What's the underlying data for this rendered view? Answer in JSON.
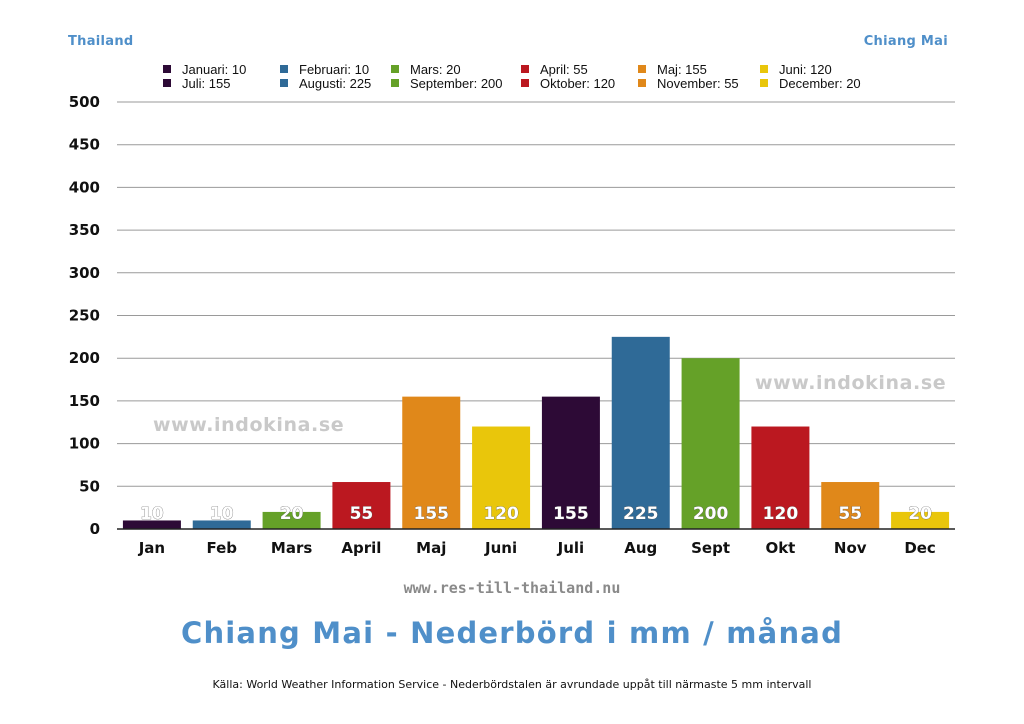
{
  "header": {
    "left_label": "Thailand",
    "right_label": "Chiang Mai"
  },
  "legend": [
    {
      "label": "Januari: 10",
      "color": "#2d0a36"
    },
    {
      "label": "Februari: 10",
      "color": "#2f6a97"
    },
    {
      "label": "Mars: 20",
      "color": "#65a128"
    },
    {
      "label": "April: 55",
      "color": "#bb1820"
    },
    {
      "label": "Maj: 155",
      "color": "#e0881a"
    },
    {
      "label": "Juni: 120",
      "color": "#e9c60b"
    },
    {
      "label": "Juli: 155",
      "color": "#2d0a36"
    },
    {
      "label": "Augusti: 225",
      "color": "#2f6a97"
    },
    {
      "label": "September: 200",
      "color": "#65a128"
    },
    {
      "label": "Oktober: 120",
      "color": "#bb1820"
    },
    {
      "label": "November: 55",
      "color": "#e0881a"
    },
    {
      "label": "December: 20",
      "color": "#e9c60b"
    }
  ],
  "watermarks": {
    "left": "www.indokina.se",
    "right": "www.indokina.se"
  },
  "footer": {
    "url": "www.res-till-thailand.nu",
    "title": "Chiang Mai - Nederbörd i mm / månad",
    "source": "Källa: World Weather Information Service - Nederbördstalen är avrundade uppåt till närmaste 5 mm intervall"
  },
  "chart_data": {
    "type": "bar",
    "categories": [
      "Jan",
      "Feb",
      "Mars",
      "April",
      "Maj",
      "Juni",
      "Juli",
      "Aug",
      "Sept",
      "Okt",
      "Nov",
      "Dec"
    ],
    "values": [
      10,
      10,
      20,
      55,
      155,
      120,
      155,
      225,
      200,
      120,
      55,
      20
    ],
    "colors": [
      "#2d0a36",
      "#2f6a97",
      "#65a128",
      "#bb1820",
      "#e0881a",
      "#e9c60b",
      "#2d0a36",
      "#2f6a97",
      "#65a128",
      "#bb1820",
      "#e0881a",
      "#e9c60b"
    ],
    "ylim": [
      0,
      500
    ],
    "yticks": [
      0,
      50,
      100,
      150,
      200,
      250,
      300,
      350,
      400,
      450,
      500
    ],
    "grid": true,
    "legend_position": "top",
    "data_labels": true
  }
}
